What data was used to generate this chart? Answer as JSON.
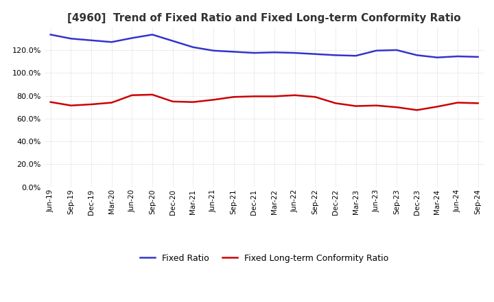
{
  "title": "[4960]  Trend of Fixed Ratio and Fixed Long-term Conformity Ratio",
  "x_labels": [
    "Jun-19",
    "Sep-19",
    "Dec-19",
    "Mar-20",
    "Jun-20",
    "Sep-20",
    "Dec-20",
    "Mar-21",
    "Jun-21",
    "Sep-21",
    "Dec-21",
    "Mar-22",
    "Jun-22",
    "Sep-22",
    "Dec-22",
    "Mar-23",
    "Jun-23",
    "Sep-23",
    "Dec-23",
    "Mar-24",
    "Jun-24",
    "Sep-24"
  ],
  "fixed_ratio": [
    133.5,
    130.0,
    128.5,
    127.0,
    130.5,
    133.5,
    128.0,
    122.5,
    119.5,
    118.5,
    117.5,
    118.0,
    117.5,
    116.5,
    115.5,
    115.0,
    119.5,
    120.0,
    115.5,
    113.5,
    114.5,
    114.0
  ],
  "fixed_lt_ratio": [
    74.5,
    71.5,
    72.5,
    74.0,
    80.5,
    81.0,
    75.0,
    74.5,
    76.5,
    79.0,
    79.5,
    79.5,
    80.5,
    79.0,
    73.5,
    71.0,
    71.5,
    70.0,
    67.5,
    70.5,
    74.0,
    73.5
  ],
  "fixed_ratio_color": "#3333cc",
  "fixed_lt_ratio_color": "#cc0000",
  "ylim": [
    0,
    140
  ],
  "yticks": [
    0,
    20,
    40,
    60,
    80,
    100,
    120
  ],
  "background_color": "#ffffff",
  "grid_color": "#bbbbbb",
  "legend_fixed": "Fixed Ratio",
  "legend_lt": "Fixed Long-term Conformity Ratio"
}
